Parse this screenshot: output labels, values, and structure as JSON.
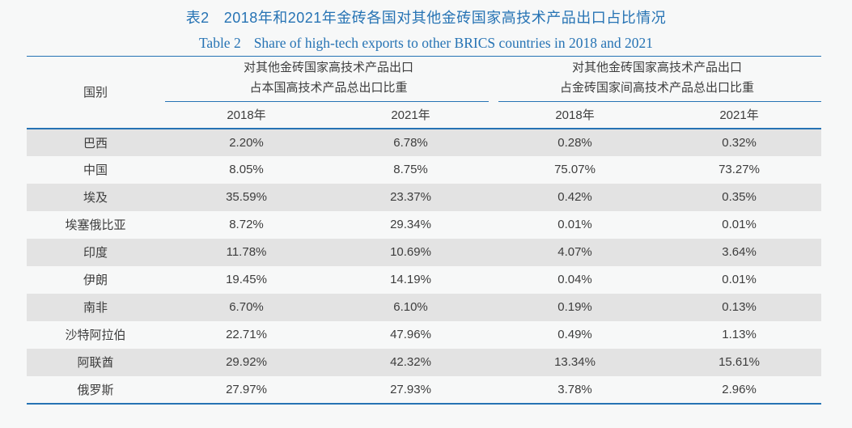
{
  "colors": {
    "accent_blue": "#2673b4",
    "stripe_gray": "#e3e3e3",
    "page_bg": "#f7f8f8",
    "text": "#3d3d3d"
  },
  "caption": {
    "zh_label": "表2",
    "zh_text": "2018年和2021年金砖各国对其他金砖国家高技术产品出口占比情况",
    "en_label": "Table 2",
    "en_text": "Share of high-tech exports to other BRICS countries in 2018 and 2021"
  },
  "table": {
    "country_header": "国别",
    "groups": [
      {
        "line1": "对其他金砖国家高技术产品出口",
        "line2": "占本国高技术产品总出口比重"
      },
      {
        "line1": "对其他金砖国家高技术产品出口",
        "line2": "占金砖国家间高技术产品总出口比重"
      }
    ],
    "year_headers": [
      "2018年",
      "2021年",
      "2018年",
      "2021年"
    ],
    "rows": [
      {
        "country": "巴西",
        "values": [
          "2.20%",
          "6.78%",
          "0.28%",
          "0.32%"
        ]
      },
      {
        "country": "中国",
        "values": [
          "8.05%",
          "8.75%",
          "75.07%",
          "73.27%"
        ]
      },
      {
        "country": "埃及",
        "values": [
          "35.59%",
          "23.37%",
          "0.42%",
          "0.35%"
        ]
      },
      {
        "country": "埃塞俄比亚",
        "values": [
          "8.72%",
          "29.34%",
          "0.01%",
          "0.01%"
        ]
      },
      {
        "country": "印度",
        "values": [
          "11.78%",
          "10.69%",
          "4.07%",
          "3.64%"
        ]
      },
      {
        "country": "伊朗",
        "values": [
          "19.45%",
          "14.19%",
          "0.04%",
          "0.01%"
        ]
      },
      {
        "country": "南非",
        "values": [
          "6.70%",
          "6.10%",
          "0.19%",
          "0.13%"
        ]
      },
      {
        "country": "沙特阿拉伯",
        "values": [
          "22.71%",
          "47.96%",
          "0.49%",
          "1.13%"
        ]
      },
      {
        "country": "阿联酋",
        "values": [
          "29.92%",
          "42.32%",
          "13.34%",
          "15.61%"
        ]
      },
      {
        "country": "俄罗斯",
        "values": [
          "27.97%",
          "27.93%",
          "3.78%",
          "2.96%"
        ]
      }
    ]
  }
}
